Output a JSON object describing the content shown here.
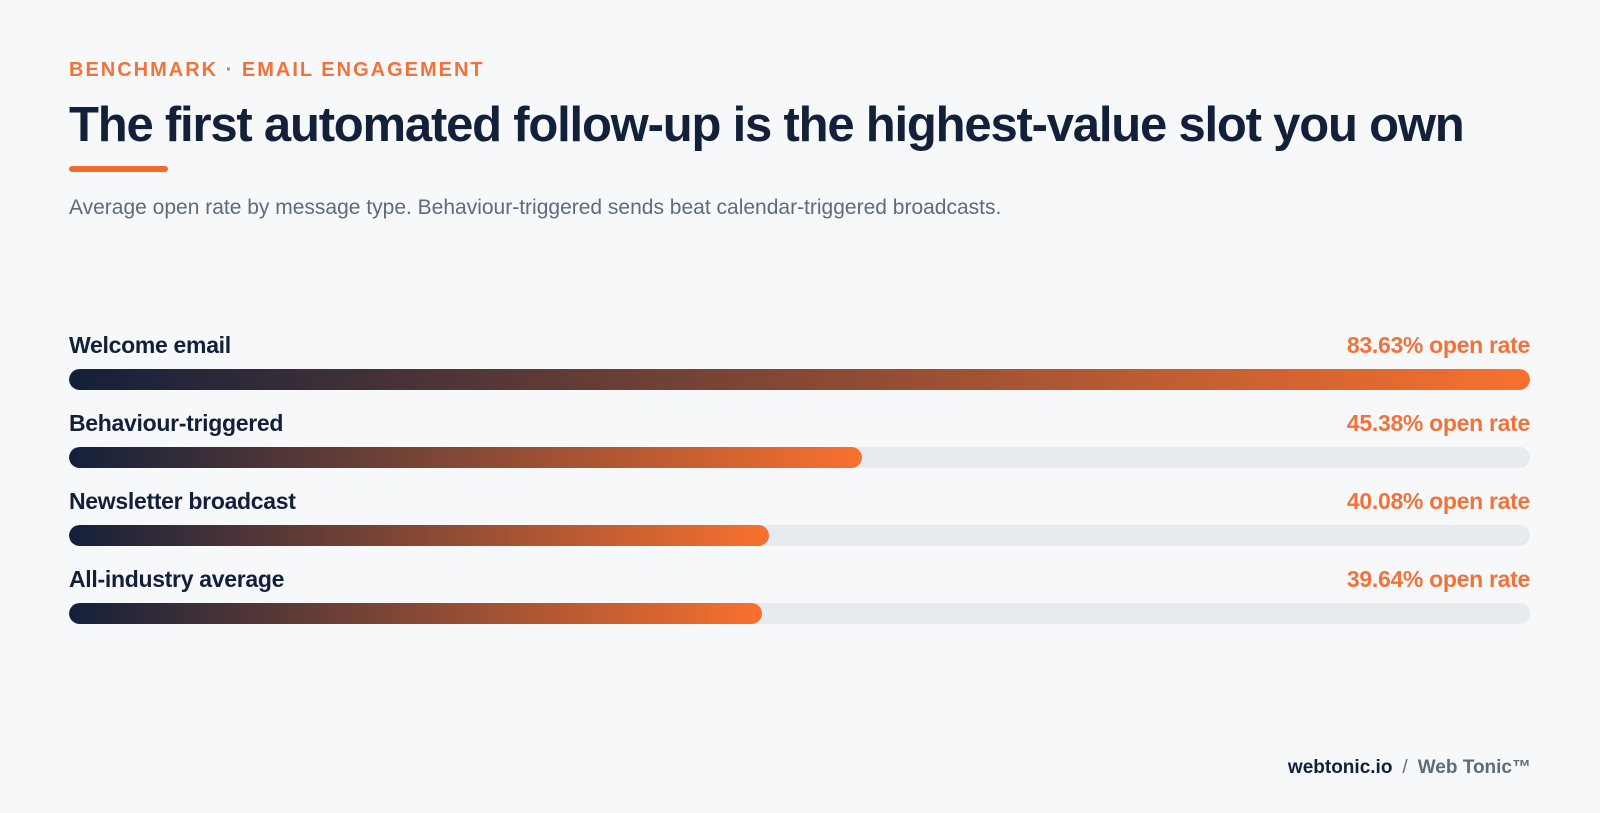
{
  "header": {
    "eyebrow": "BENCHMARK · EMAIL ENGAGEMENT",
    "title": "The first automated follow-up is the highest-value slot you own",
    "subtitle": "Average open rate by message type. Behaviour-triggered sends beat calendar-triggered broadcasts."
  },
  "chart_data": {
    "type": "bar",
    "orientation": "horizontal",
    "title": "The first automated follow-up is the highest-value slot you own",
    "subtitle": "Average open rate by message type. Behaviour-triggered sends beat calendar-triggered broadcasts.",
    "categories": [
      "Welcome email",
      "Behaviour-triggered",
      "Newsletter broadcast",
      "All-industry average"
    ],
    "values": [
      83.63,
      45.38,
      40.08,
      39.64
    ],
    "value_labels": [
      "83.63% open rate",
      "45.38% open rate",
      "40.08% open rate",
      "39.64% open rate"
    ],
    "xlim": [
      0,
      83.63
    ],
    "grid": false,
    "legend": "none",
    "colors": {
      "bar_start": "#13203a",
      "bar_end": "#f9712f",
      "track": "#e7eaee",
      "accent": "#f2733a"
    }
  },
  "footer": {
    "domain": "webtonic.io",
    "separator": "/",
    "brand": "Web Tonic™"
  }
}
